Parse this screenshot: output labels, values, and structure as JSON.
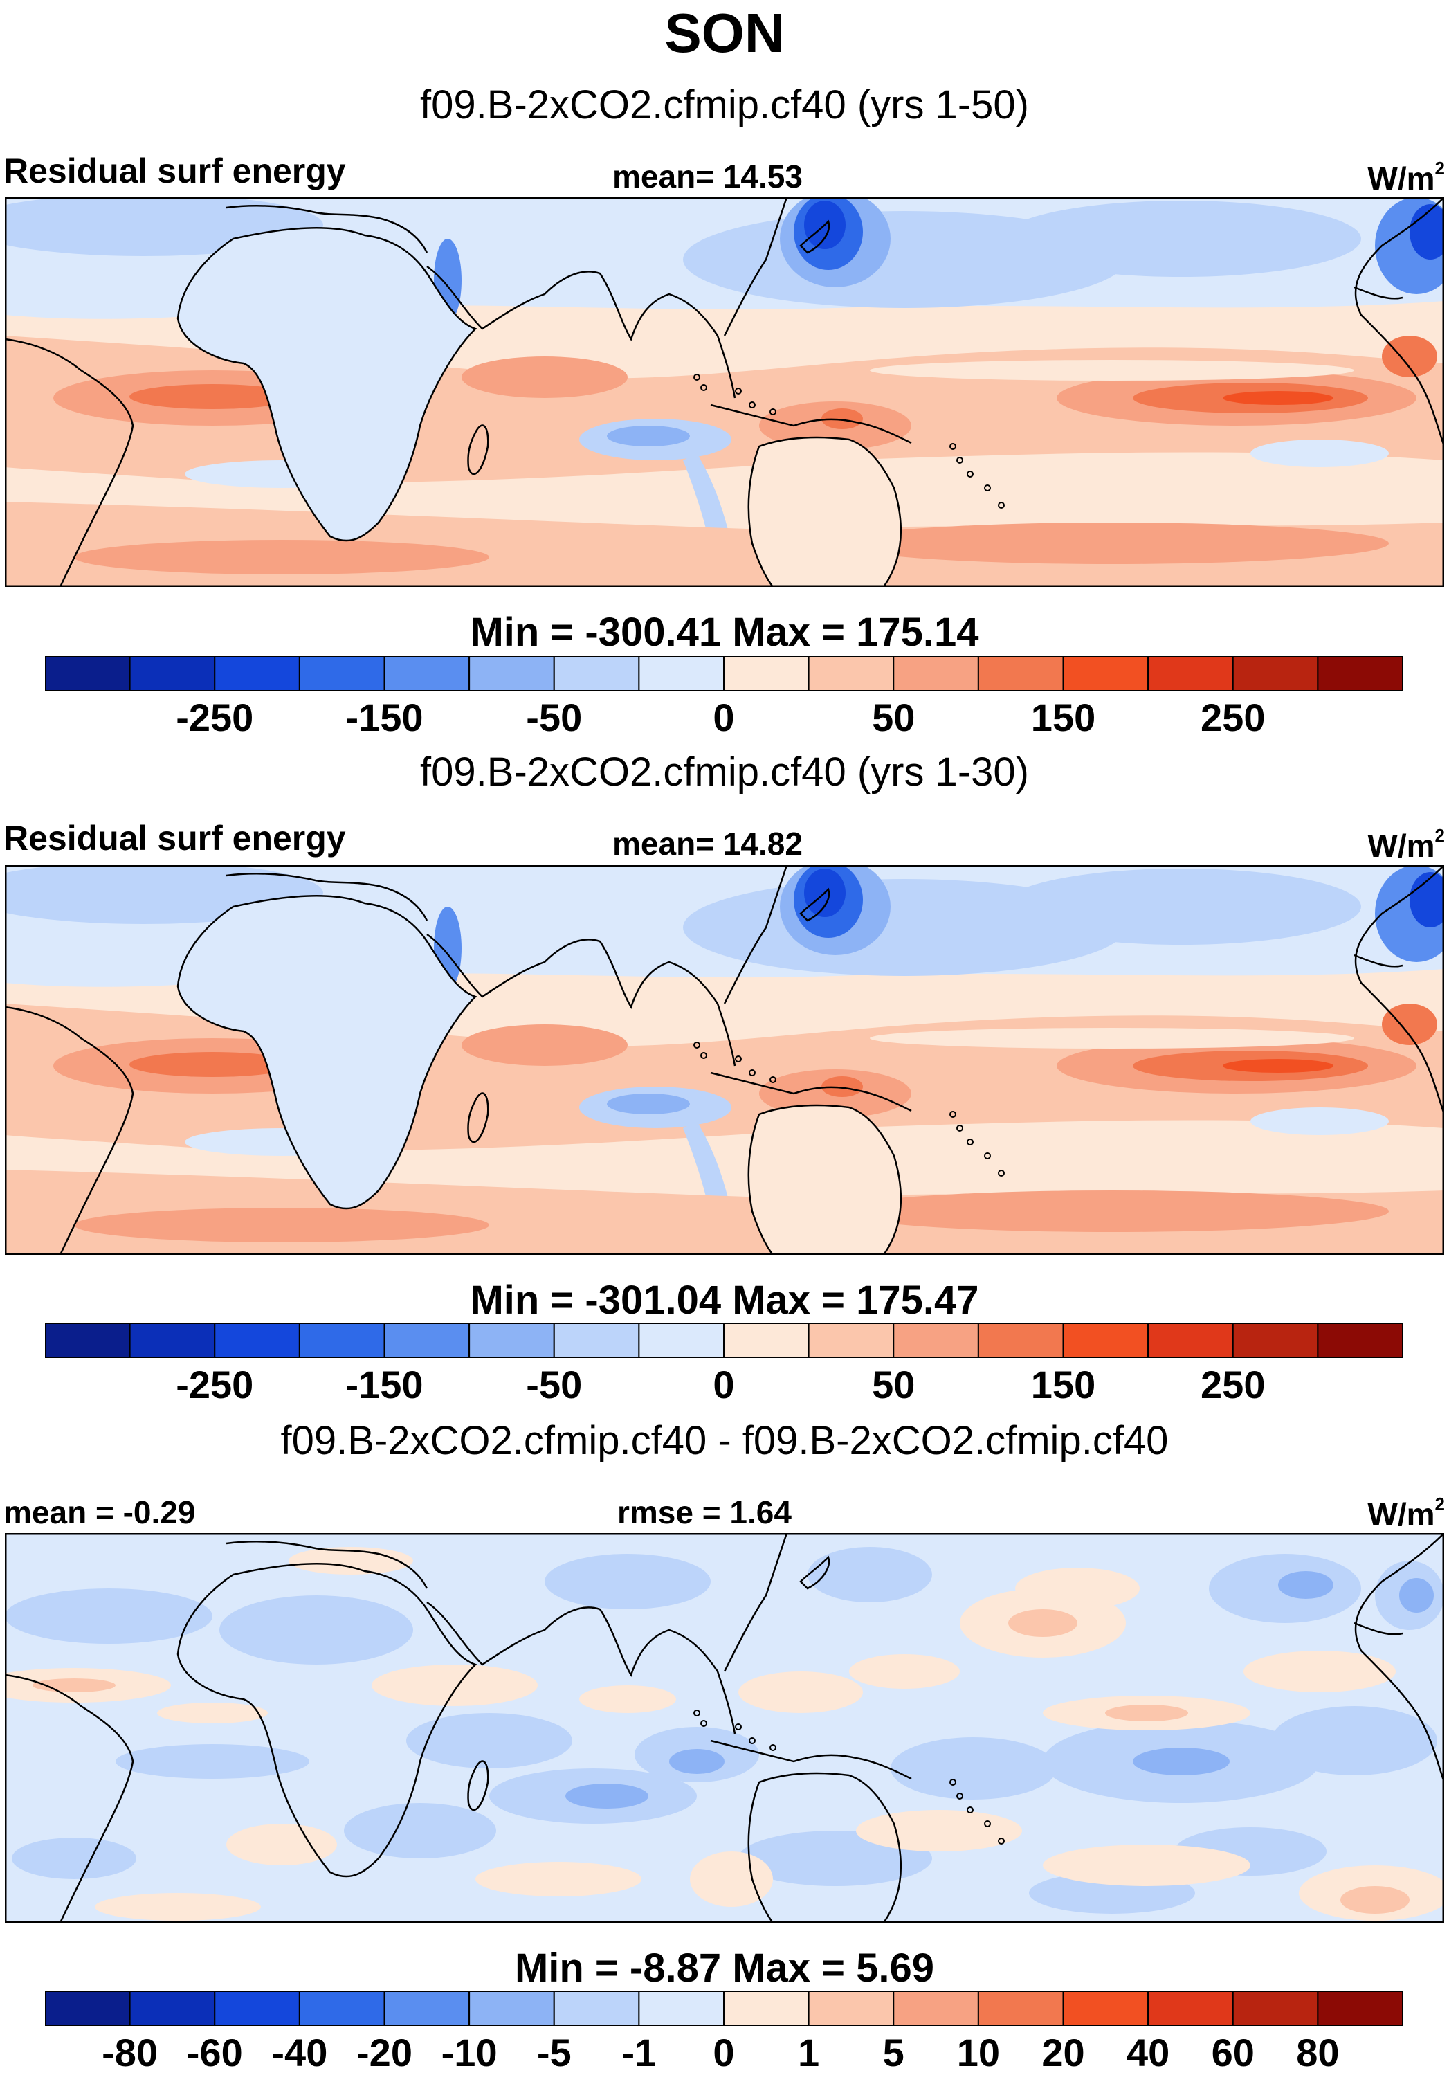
{
  "title": "SON",
  "colors": {
    "scale": [
      "#0a1e8c",
      "#0b2fb8",
      "#1447dc",
      "#2f6ae8",
      "#5a8ef0",
      "#8db3f5",
      "#bcd4fa",
      "#dbe9fc",
      "#fde8d8",
      "#fbc6ac",
      "#f7a283",
      "#f2784f",
      "#f25022",
      "#e0381a",
      "#b82410",
      "#8c0a05"
    ],
    "land_outline": "#000000"
  },
  "chart_data": [
    {
      "type": "heatmap",
      "model_label": "f09.B-2xCO2.cfmip.cf40 (yrs 1-50)",
      "left_label": "Residual surf energy",
      "center_label": "mean=  14.53",
      "units_base": "W/m",
      "units_sup": "2",
      "min_max": "Min = -300.41 Max = 175.14",
      "colorbar_ticks": [
        "-250",
        "-150",
        "-50",
        "0",
        "50",
        "150",
        "250"
      ],
      "colorbar_tick_boundaries": [
        2,
        4,
        6,
        8,
        10,
        12,
        14
      ]
    },
    {
      "type": "heatmap",
      "model_label": "f09.B-2xCO2.cfmip.cf40 (yrs 1-30)",
      "left_label": "Residual surf energy",
      "center_label": "mean=  14.82",
      "units_base": "W/m",
      "units_sup": "2",
      "min_max": "Min = -301.04 Max = 175.47",
      "colorbar_ticks": [
        "-250",
        "-150",
        "-50",
        "0",
        "50",
        "150",
        "250"
      ],
      "colorbar_tick_boundaries": [
        2,
        4,
        6,
        8,
        10,
        12,
        14
      ]
    },
    {
      "type": "heatmap",
      "model_label": "f09.B-2xCO2.cfmip.cf40 - f09.B-2xCO2.cfmip.cf40",
      "left_label": "mean =  -0.29",
      "center_label": "rmse =   1.64",
      "units_base": "W/m",
      "units_sup": "2",
      "min_max": "Min =  -8.87 Max =    5.69",
      "colorbar_ticks": [
        "-80",
        "-60",
        "-40",
        "-20",
        "-10",
        "-5",
        "-1",
        "0",
        "1",
        "5",
        "10",
        "20",
        "40",
        "60",
        "80"
      ],
      "colorbar_tick_boundaries": [
        1,
        2,
        3,
        4,
        5,
        6,
        7,
        8,
        9,
        10,
        11,
        12,
        13,
        14,
        15
      ]
    }
  ]
}
